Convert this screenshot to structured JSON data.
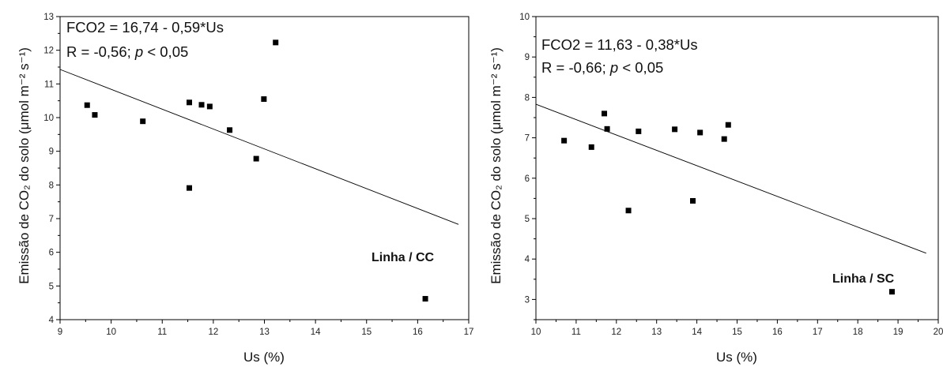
{
  "chart_data": [
    {
      "type": "scatter",
      "xlabel": "Us (%)",
      "ylabel": "Emissão de CO₂ do solo (μmol m⁻² s⁻¹)",
      "xlim": [
        9,
        17
      ],
      "ylim": [
        4,
        13
      ],
      "xticks": [
        "9",
        "10",
        "11",
        "12",
        "13",
        "14",
        "15",
        "16",
        "17"
      ],
      "yticks": [
        "4",
        "5",
        "6",
        "7",
        "8",
        "9",
        "10",
        "11",
        "12",
        "13"
      ],
      "grid": false,
      "points": [
        {
          "x": 9.53,
          "y": 10.37
        },
        {
          "x": 9.68,
          "y": 10.08
        },
        {
          "x": 10.62,
          "y": 9.89
        },
        {
          "x": 11.53,
          "y": 10.45
        },
        {
          "x": 11.53,
          "y": 7.91
        },
        {
          "x": 11.77,
          "y": 10.38
        },
        {
          "x": 11.93,
          "y": 10.33
        },
        {
          "x": 12.32,
          "y": 9.63
        },
        {
          "x": 12.84,
          "y": 8.78
        },
        {
          "x": 12.99,
          "y": 10.55
        },
        {
          "x": 13.22,
          "y": 12.23
        },
        {
          "x": 16.15,
          "y": 4.62
        }
      ],
      "regression": {
        "intercept": 16.74,
        "slope": -0.59,
        "x_range": [
          9,
          16.8
        ]
      },
      "annotations": {
        "eq_line1": "FCO2 = 16,74 - 0,59*Us",
        "r_text": "R = -0,56; ",
        "p_text": "p",
        "p_rest": " < 0,05",
        "tag": "Linha / CC"
      }
    },
    {
      "type": "scatter",
      "xlabel": "Us (%)",
      "ylabel": "Emissão de CO₂ do solo (μmol m⁻² s⁻¹)",
      "xlim": [
        10,
        20
      ],
      "ylim": [
        2.5,
        10
      ],
      "xticks": [
        "10",
        "11",
        "12",
        "13",
        "14",
        "15",
        "16",
        "17",
        "18",
        "19",
        "20"
      ],
      "yticks": [
        "3",
        "4",
        "5",
        "6",
        "7",
        "8",
        "9",
        "10"
      ],
      "grid": false,
      "points": [
        {
          "x": 10.7,
          "y": 6.93
        },
        {
          "x": 11.38,
          "y": 6.77
        },
        {
          "x": 11.7,
          "y": 7.6
        },
        {
          "x": 11.77,
          "y": 7.22
        },
        {
          "x": 12.3,
          "y": 5.2
        },
        {
          "x": 12.55,
          "y": 7.16
        },
        {
          "x": 13.45,
          "y": 7.21
        },
        {
          "x": 13.9,
          "y": 5.44
        },
        {
          "x": 14.08,
          "y": 7.13
        },
        {
          "x": 14.68,
          "y": 6.97
        },
        {
          "x": 14.78,
          "y": 7.32
        },
        {
          "x": 18.85,
          "y": 3.19
        }
      ],
      "regression": {
        "intercept": 11.63,
        "slope": -0.38,
        "x_range": [
          10,
          19.7
        ]
      },
      "annotations": {
        "eq_line1": "FCO2 = 11,63 - 0,38*Us",
        "r_text": "R = -0,66; ",
        "p_text": "p",
        "p_rest": " < 0,05",
        "tag": "Linha / SC"
      }
    }
  ]
}
